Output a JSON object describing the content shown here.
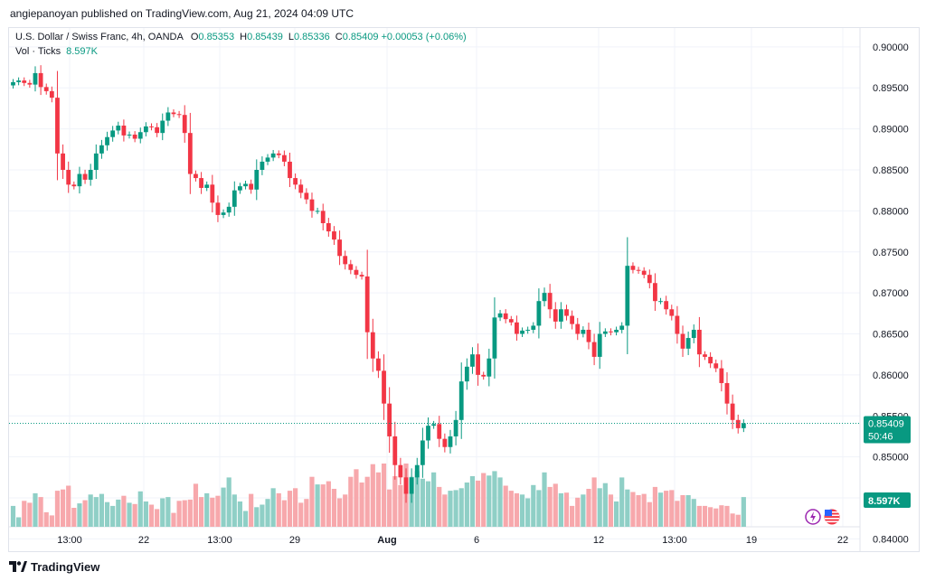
{
  "publisher_line": "angiepanoyan published on TradingView.com, Aug 21, 2024 04:09 UTC",
  "footer": {
    "brand": "TradingView",
    "logo_icon": "tradingview-logo-icon"
  },
  "legend": {
    "instrument": "U.S. Dollar / Swiss Franc, 4h, OANDA",
    "o_label": "O",
    "o_value": "0.85353",
    "h_label": "H",
    "h_value": "0.85439",
    "l_label": "L",
    "l_value": "0.85336",
    "c_label": "C",
    "c_value": "0.85409",
    "change": "+0.00053 (+0.06%)",
    "vol_label": "Vol · Ticks",
    "vol_value": "8.597K"
  },
  "colors": {
    "up": "#089981",
    "down": "#f23645",
    "vol_up": "#8fcfc6",
    "vol_down": "#f7a8ac",
    "grid": "#f0f3fa"
  },
  "badges": {
    "price": "0.85409",
    "countdown": "50:46",
    "volume": "8.597K"
  },
  "icons": [
    "lightning-icon",
    "us-flag-icon"
  ],
  "chart_data": {
    "type": "candlestick",
    "title": "U.S. Dollar / Swiss Franc, 4h, OANDA",
    "y_ticks": [
      "0.90000",
      "0.89500",
      "0.89000",
      "0.88500",
      "0.88000",
      "0.87500",
      "0.87000",
      "0.86500",
      "0.86000",
      "0.85500",
      "0.85000",
      "0.84500",
      "0.84000"
    ],
    "ylim": [
      0.8385,
      0.9023
    ],
    "x_ticks": [
      "13:00",
      "22",
      "13:00",
      "29",
      "Aug",
      "6",
      "12",
      "13:00",
      "19",
      "22"
    ],
    "last_close": 0.85409,
    "price_scale": "right",
    "closes": [
      0.8957,
      0.8959,
      0.8956,
      0.8954,
      0.8968,
      0.8951,
      0.8946,
      0.8938,
      0.887,
      0.885,
      0.8832,
      0.883,
      0.8845,
      0.8838,
      0.885,
      0.887,
      0.888,
      0.889,
      0.8898,
      0.8904,
      0.8892,
      0.8893,
      0.8888,
      0.8896,
      0.8903,
      0.8902,
      0.8895,
      0.891,
      0.892,
      0.8918,
      0.8917,
      0.8895,
      0.8845,
      0.884,
      0.8828,
      0.8832,
      0.881,
      0.8795,
      0.8798,
      0.8805,
      0.8825,
      0.883,
      0.8833,
      0.8826,
      0.885,
      0.886,
      0.8865,
      0.887,
      0.8868,
      0.886,
      0.884,
      0.8832,
      0.8822,
      0.8814,
      0.88,
      0.88,
      0.8785,
      0.8775,
      0.8765,
      0.8745,
      0.8735,
      0.8728,
      0.8722,
      0.872,
      0.8652,
      0.862,
      0.8605,
      0.8565,
      0.8525,
      0.849,
      0.8475,
      0.8455,
      0.8475,
      0.849,
      0.852,
      0.8538,
      0.854,
      0.8522,
      0.8512,
      0.8525,
      0.8545,
      0.8592,
      0.861,
      0.8625,
      0.86,
      0.8598,
      0.862,
      0.867,
      0.8675,
      0.8668,
      0.8664,
      0.865,
      0.8654,
      0.8655,
      0.866,
      0.869,
      0.87,
      0.868,
      0.8665,
      0.868,
      0.8672,
      0.8662,
      0.865,
      0.8655,
      0.864,
      0.8622,
      0.865,
      0.8653,
      0.8652,
      0.8655,
      0.866,
      0.8733,
      0.8728,
      0.8727,
      0.8722,
      0.8712,
      0.869,
      0.869,
      0.868,
      0.8672,
      0.865,
      0.8632,
      0.8645,
      0.8655,
      0.8625,
      0.8622,
      0.8614,
      0.8608,
      0.859,
      0.8565,
      0.8545,
      0.8535,
      0.8541
    ],
    "volumes": [
      0.33,
      0.15,
      0.41,
      0.38,
      0.53,
      0.47,
      0.23,
      0.18,
      0.57,
      0.59,
      0.65,
      0.3,
      0.37,
      0.42,
      0.51,
      0.47,
      0.52,
      0.39,
      0.33,
      0.43,
      0.49,
      0.38,
      0.36,
      0.56,
      0.4,
      0.35,
      0.28,
      0.45,
      0.47,
      0.22,
      0.41,
      0.42,
      0.43,
      0.68,
      0.47,
      0.53,
      0.46,
      0.49,
      0.62,
      0.78,
      0.51,
      0.4,
      0.25,
      0.52,
      0.31,
      0.35,
      0.44,
      0.61,
      0.53,
      0.42,
      0.57,
      0.61,
      0.38,
      0.44,
      0.79,
      0.67,
      0.67,
      0.72,
      0.6,
      0.45,
      0.51,
      0.79,
      0.91,
      0.7,
      0.79,
      0.99,
      0.86,
      1.0,
      0.59,
      0.8,
      0.66,
      1.0,
      0.79,
      0.88,
      0.76,
      0.72,
      0.86,
      0.63,
      0.51,
      0.57,
      0.58,
      0.61,
      0.7,
      0.8,
      0.73,
      0.85,
      0.81,
      0.88,
      0.78,
      0.65,
      0.57,
      0.53,
      0.51,
      0.45,
      0.66,
      0.58,
      0.86,
      0.63,
      0.68,
      0.53,
      0.54,
      0.33,
      0.46,
      0.51,
      0.6,
      0.78,
      0.61,
      0.69,
      0.51,
      0.4,
      0.78,
      0.59,
      0.55,
      0.5,
      0.52,
      0.39,
      0.63,
      0.54,
      0.57,
      0.58,
      0.41,
      0.5,
      0.5,
      0.44,
      0.33,
      0.33,
      0.31,
      0.29,
      0.34,
      0.33,
      0.21,
      0.19,
      0.47
    ]
  }
}
